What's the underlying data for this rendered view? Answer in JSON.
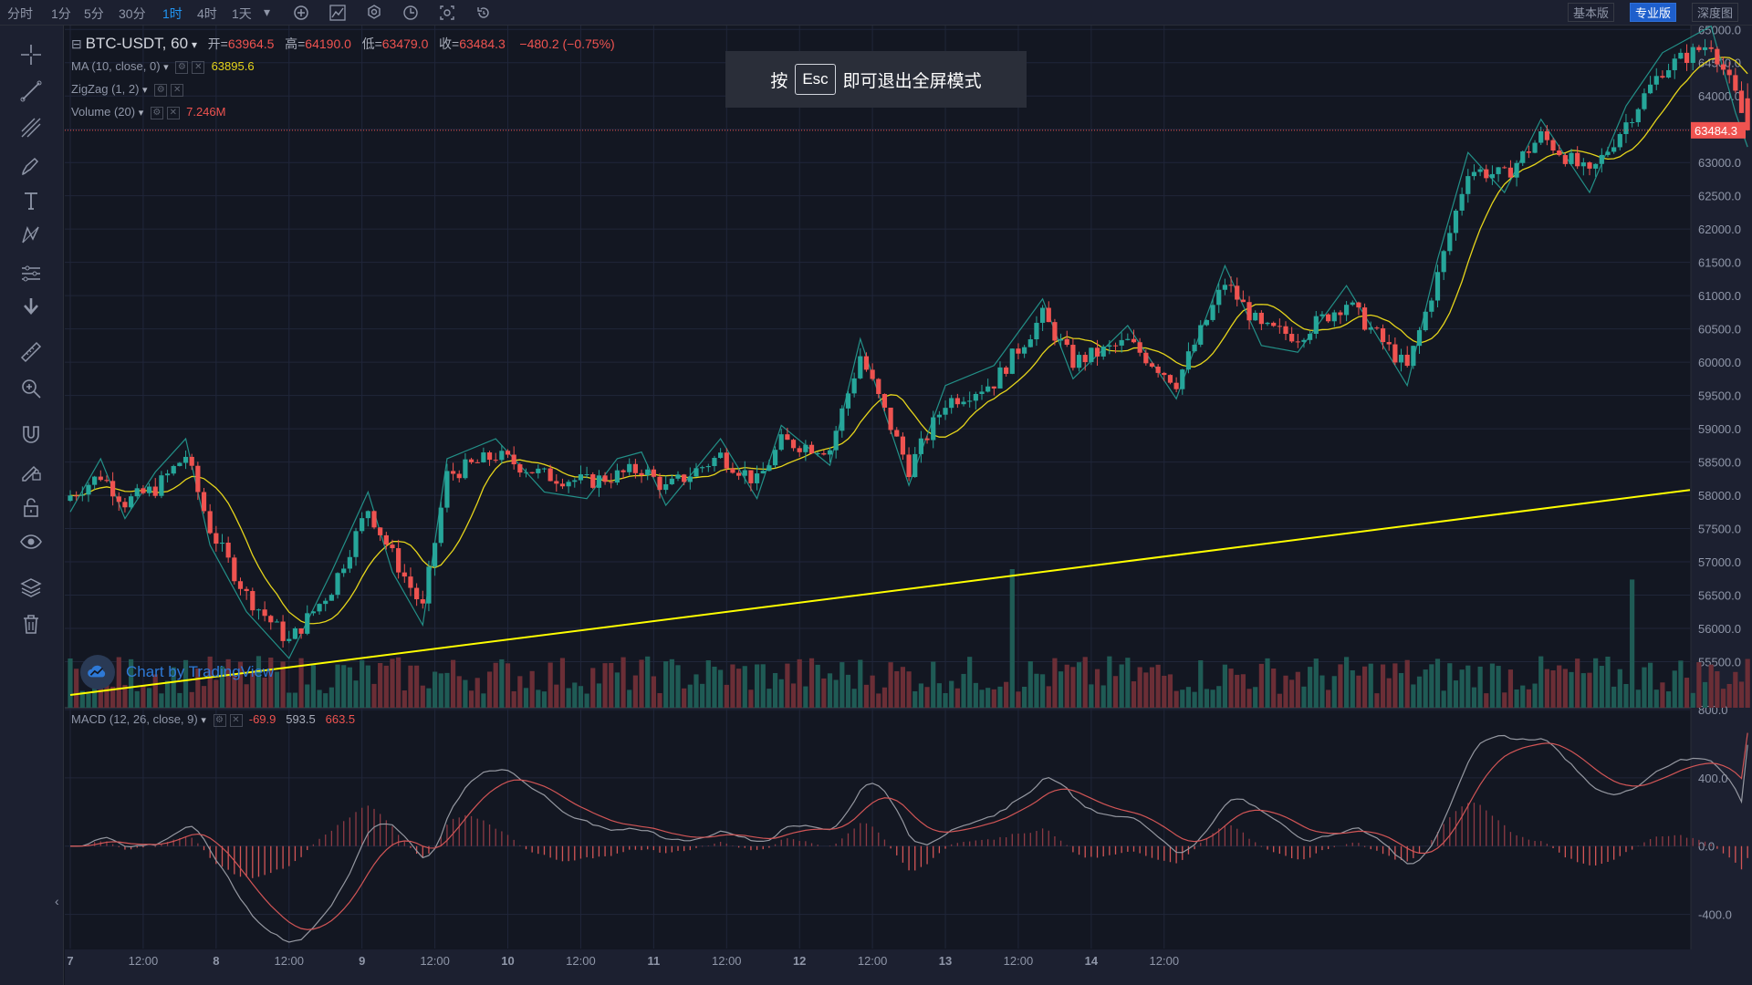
{
  "topbar": {
    "timeframes": [
      "分时",
      "1分",
      "5分",
      "30分",
      "1时",
      "4时",
      "1天"
    ],
    "active_timeframe": "1时",
    "dropdown_icon": "chevron-down-icon",
    "tool_icons": [
      "plus-circle-icon",
      "indicator-icon",
      "settings-icon",
      "clock-icon",
      "screenshot-icon",
      "undo-icon"
    ],
    "view_buttons": [
      "基本版",
      "专业版",
      "深度图"
    ],
    "active_view": "专业版"
  },
  "sidebar": {
    "tools": [
      "crosshair-icon",
      "trend-line-icon",
      "fib-icon",
      "brush-icon",
      "text-icon",
      "pattern-icon",
      "prediction-icon",
      "arrow-down-icon",
      "ruler-icon",
      "zoom-in-icon",
      "magnet-icon",
      "lock-drawing-icon",
      "unlock-icon",
      "eye-icon",
      "layers-icon",
      "trash-icon"
    ],
    "collapse_arrow": "‹"
  },
  "legend": {
    "symbol": "BTC-USDT, 60",
    "open_label": "开=",
    "open": "63964.5",
    "high_label": "高=",
    "high": "64190.0",
    "low_label": "低=",
    "low": "63479.0",
    "close_label": "收=",
    "close": "63484.3",
    "change": "−480.2 (−0.75%)",
    "ma_label": "MA (10, close, 0)",
    "ma_value": "63895.6",
    "zigzag_label": "ZigZag (1, 2)",
    "volume_label": "Volume (20)",
    "volume_value": "7.246M",
    "macd_label": "MACD (12, 26, close, 9)",
    "macd_hist": "-69.9",
    "macd_line": "593.5",
    "macd_signal": "663.5"
  },
  "toast": {
    "prefix": "按",
    "key": "Esc",
    "suffix": "即可退出全屏模式"
  },
  "watermark": "Chart by TradingView",
  "price_tag": "63484.3",
  "colors": {
    "up": "#26a69a",
    "down": "#ef5350",
    "ma": "#e6d51b",
    "trend": "#ffff00",
    "macd": "#9598a1",
    "signal": "#d25556",
    "grid": "#20263a",
    "bg": "#131722"
  },
  "chart_data": {
    "type": "candlestick",
    "price_axis": {
      "min": 55000,
      "max": 65250,
      "ticks": [
        "65000.0",
        "64500.0",
        "64000.0",
        "63500.0",
        "63000.0",
        "62500.0",
        "62000.0",
        "61500.0",
        "61000.0",
        "60500.0",
        "60000.0",
        "59500.0",
        "59000.0",
        "58500.0",
        "58000.0",
        "57500.0",
        "57000.0",
        "56500.0",
        "56000.0",
        "55500.0"
      ]
    },
    "macd_axis": {
      "min": -600,
      "max": 800,
      "ticks": [
        "800.0",
        "400.0",
        "0.0",
        "-400.0"
      ]
    },
    "time_axis": [
      "7",
      "12:00",
      "8",
      "12:00",
      "9",
      "12:00",
      "10",
      "12:00",
      "11",
      "12:00",
      "12",
      "12:00",
      "13",
      "12:00",
      "14",
      "12:00"
    ],
    "bars_per_day": 24,
    "anchors": [
      [
        0,
        58000
      ],
      [
        5,
        58300
      ],
      [
        9,
        57900
      ],
      [
        14,
        58100
      ],
      [
        19,
        58600
      ],
      [
        23,
        57500
      ],
      [
        29,
        56500
      ],
      [
        36,
        55800
      ],
      [
        43,
        56600
      ],
      [
        49,
        57800
      ],
      [
        53,
        57100
      ],
      [
        58,
        56300
      ],
      [
        62,
        58300
      ],
      [
        70,
        58600
      ],
      [
        78,
        58300
      ],
      [
        85,
        58200
      ],
      [
        90,
        58300
      ],
      [
        94,
        58400
      ],
      [
        98,
        58100
      ],
      [
        107,
        58600
      ],
      [
        113,
        58200
      ],
      [
        117,
        58800
      ],
      [
        125,
        58700
      ],
      [
        130,
        60100
      ],
      [
        138,
        58400
      ],
      [
        144,
        59400
      ],
      [
        152,
        59700
      ],
      [
        160,
        60700
      ],
      [
        165,
        60000
      ],
      [
        174,
        60300
      ],
      [
        182,
        59700
      ],
      [
        190,
        61200
      ],
      [
        196,
        60500
      ],
      [
        202,
        60400
      ],
      [
        210,
        60900
      ],
      [
        220,
        59900
      ],
      [
        225,
        61300
      ],
      [
        230,
        62900
      ],
      [
        236,
        62800
      ],
      [
        242,
        63400
      ],
      [
        250,
        62800
      ],
      [
        256,
        63600
      ],
      [
        262,
        64400
      ],
      [
        270,
        64800
      ],
      [
        274,
        64000
      ],
      [
        276,
        63484
      ]
    ],
    "last_candle": {
      "open": 63964.5,
      "high": 64190.0,
      "low": 63479.0,
      "close": 63484.3
    },
    "ma_last": 63895.6,
    "trend_line": {
      "start": [
        0,
        55000
      ],
      "end": [
        276,
        58080
      ]
    },
    "volume": {
      "last": "7.246M",
      "spikes": [
        [
          155,
          0.8
        ],
        [
          257,
          0.74
        ],
        [
          173,
          0.25
        ],
        [
          116,
          0.2
        ]
      ]
    },
    "macd": {
      "last_hist": -69.9,
      "last_line": 593.5,
      "last_signal": 663.5
    }
  }
}
